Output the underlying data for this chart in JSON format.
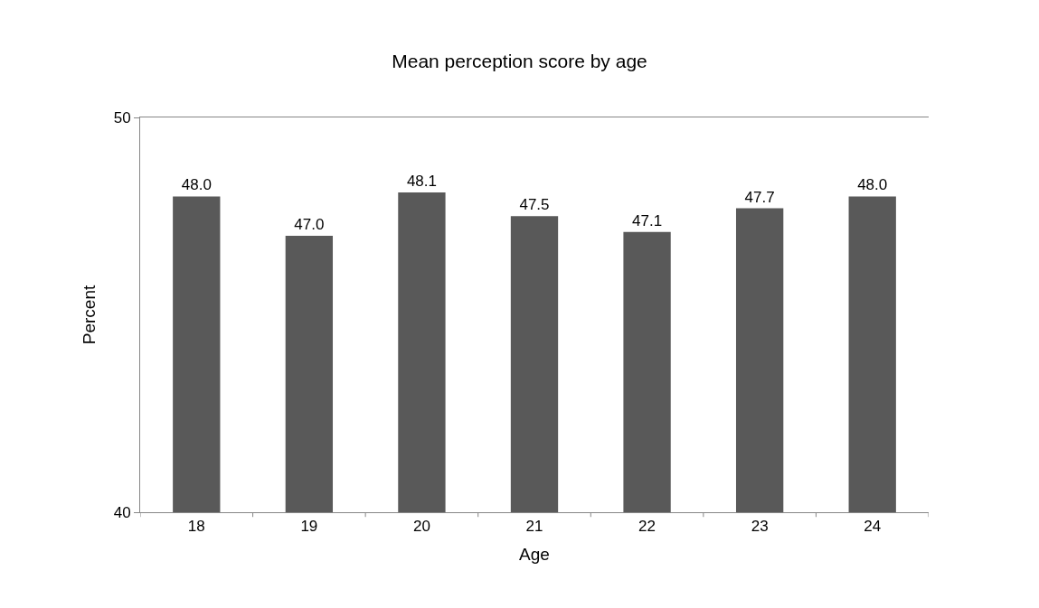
{
  "chart_data": {
    "type": "bar",
    "title": "Mean perception score by age",
    "xlabel": "Age",
    "ylabel": "Percent",
    "categories": [
      "18",
      "19",
      "20",
      "21",
      "22",
      "23",
      "24"
    ],
    "values": [
      48.0,
      47.0,
      48.1,
      47.5,
      47.1,
      47.7,
      48.0
    ],
    "color": "#595959",
    "ylim": [
      40,
      50
    ],
    "yticks": [
      40,
      50
    ],
    "value_labels": [
      "48.0",
      "47.0",
      "48.1",
      "47.5",
      "47.1",
      "47.7",
      "48.0"
    ],
    "legend": false
  }
}
